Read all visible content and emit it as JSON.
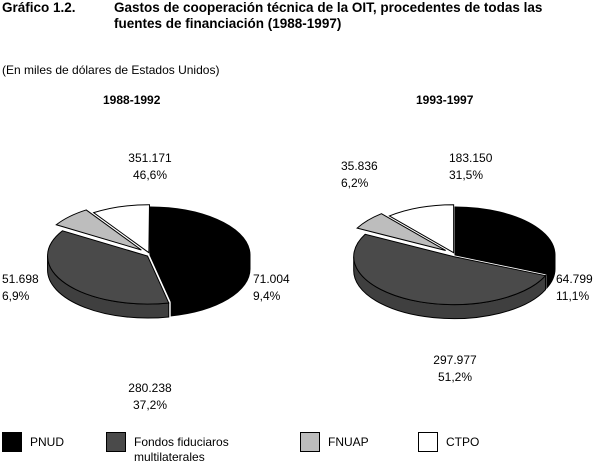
{
  "figure": {
    "label": "Gráfico 1.2.",
    "title": "Gastos de cooperación técnica de la OIT, procedentes de todas las fuentes de financiación (1988-1997)",
    "units": "(En miles de dólares de Estados Unidos)"
  },
  "chart_data": [
    {
      "type": "pie",
      "title": "1988-1992",
      "slices": [
        {
          "name": "PNUD",
          "value": "351.171",
          "percent": "46,6%",
          "pct": 46.6,
          "color": "#000000"
        },
        {
          "name": "Fondos fiduciaros multilaterales",
          "value": "280.238",
          "percent": "37,2%",
          "pct": 37.2,
          "color": "#4a4a4a"
        },
        {
          "name": "FNUAP",
          "value": "51.698",
          "percent": "6,9%",
          "pct": 6.9,
          "color": "#bdbdbd"
        },
        {
          "name": "CTPO",
          "value": "71.004",
          "percent": "9,4%",
          "pct": 9.4,
          "color": "#ffffff"
        }
      ]
    },
    {
      "type": "pie",
      "title": "1993-1997",
      "slices": [
        {
          "name": "PNUD",
          "value": "183.150",
          "percent": "31,5%",
          "pct": 31.5,
          "color": "#000000"
        },
        {
          "name": "Fondos fiduciaros multilaterales",
          "value": "297.977",
          "percent": "51,2%",
          "pct": 51.2,
          "color": "#4a4a4a"
        },
        {
          "name": "FNUAP",
          "value": "35.836",
          "percent": "6,2%",
          "pct": 6.2,
          "color": "#bdbdbd"
        },
        {
          "name": "CTPO",
          "value": "64.799",
          "percent": "11,1%",
          "pct": 11.1,
          "color": "#ffffff"
        }
      ]
    }
  ],
  "legend": [
    {
      "label": "PNUD",
      "color": "#000000"
    },
    {
      "label": "Fondos fiduciaros multilaterales",
      "color": "#4a4a4a"
    },
    {
      "label": "FNUAP",
      "color": "#bdbdbd"
    },
    {
      "label": "CTPO",
      "color": "#ffffff"
    }
  ]
}
